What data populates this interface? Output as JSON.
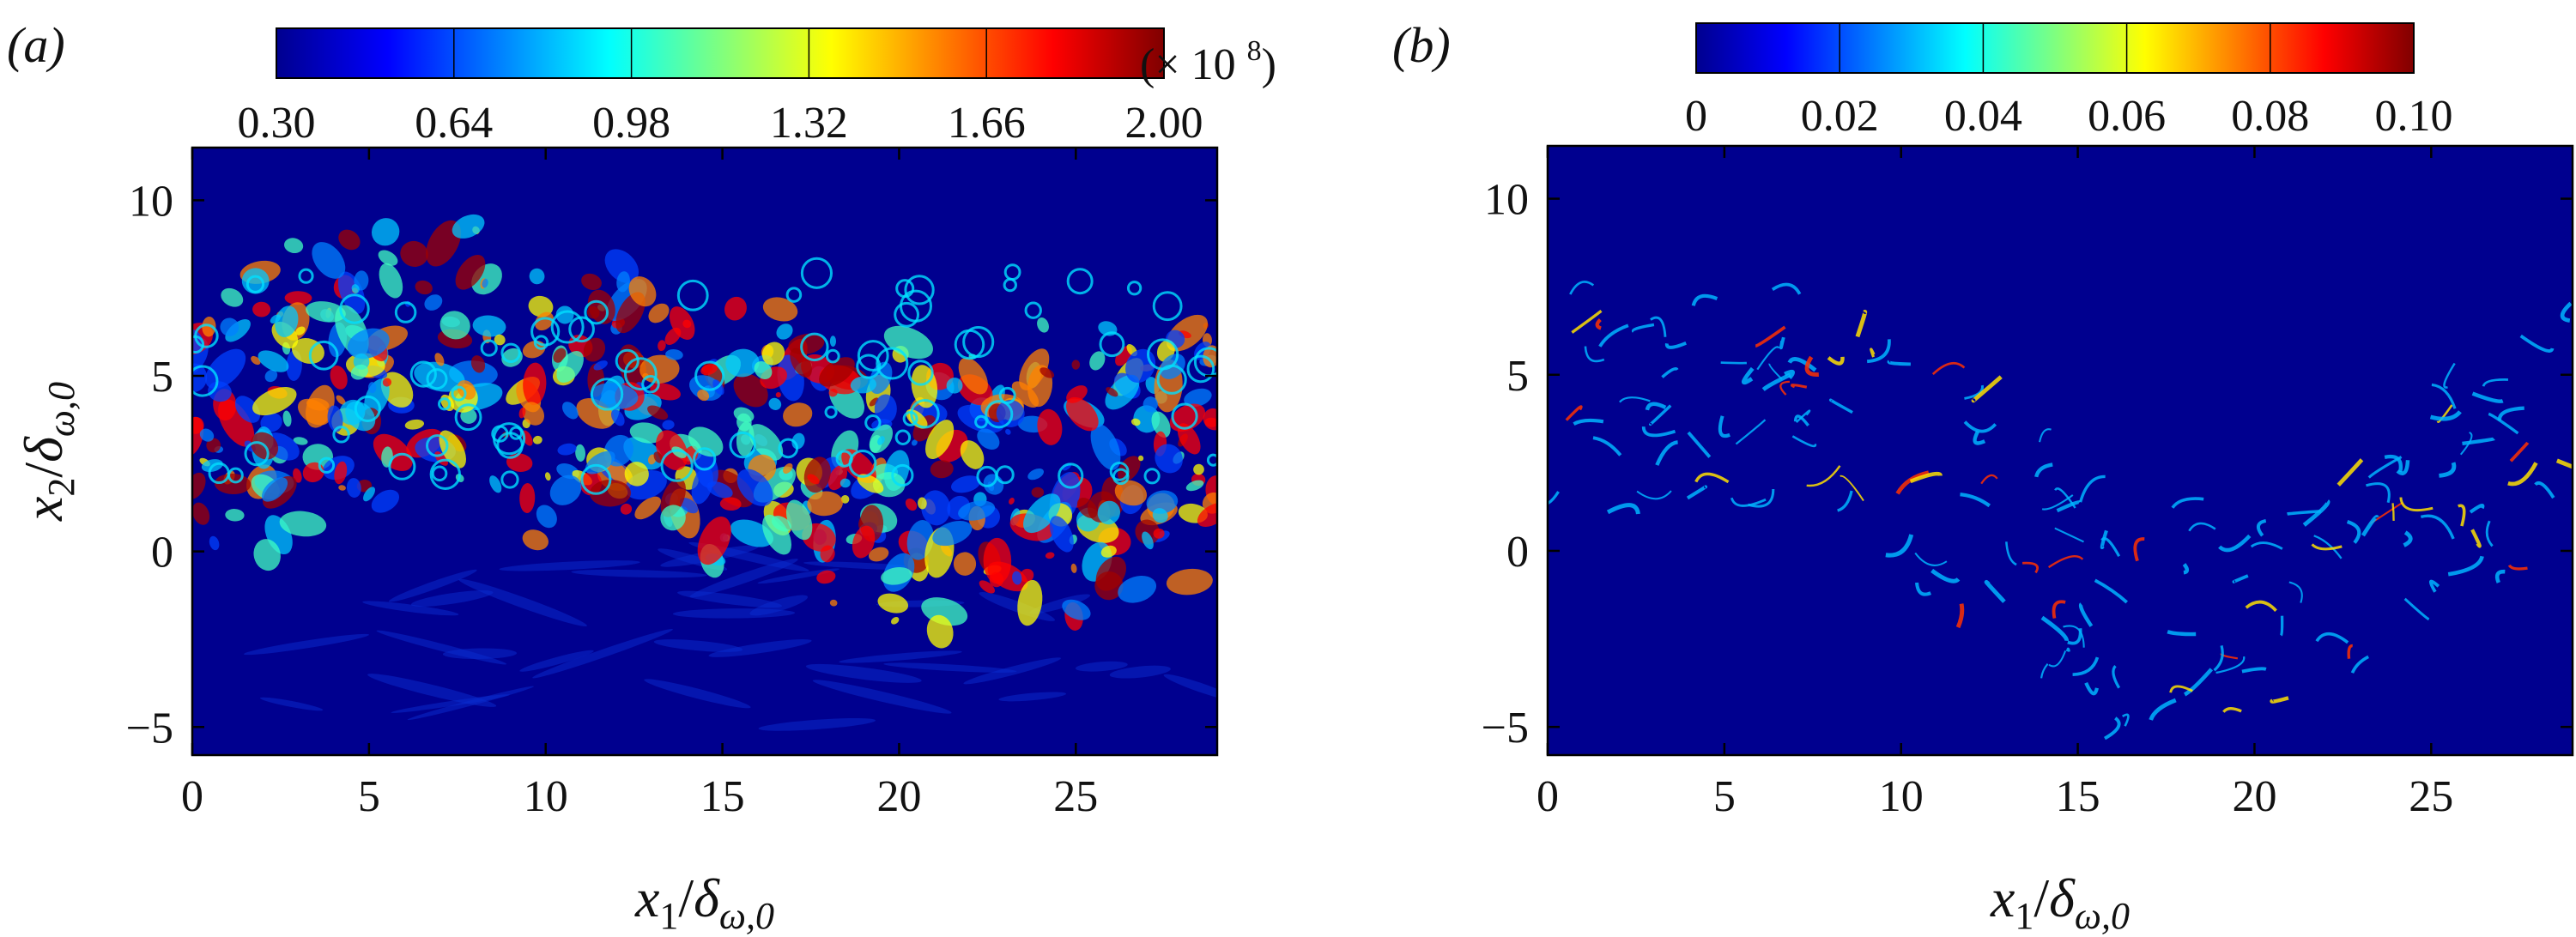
{
  "chart_data": [
    {
      "type": "heatmap",
      "panel_label": "(a)",
      "xlabel": {
        "var": "x",
        "sub": "1",
        "den": "δ",
        "den_sub": "ω,0"
      },
      "ylabel": {
        "var": "x",
        "sub": "2",
        "den": "δ",
        "den_sub": "ω,0"
      },
      "xlim": [
        0,
        29
      ],
      "ylim": [
        -5.8,
        11.5
      ],
      "x_ticks": [
        0,
        5,
        10,
        15,
        20,
        25
      ],
      "x_tick_labels": [
        "0",
        "5",
        "10",
        "15",
        "20",
        "25"
      ],
      "y_ticks": [
        -5,
        0,
        5,
        10
      ],
      "y_tick_labels": [
        "−5",
        "0",
        "5",
        "10"
      ],
      "colorbar": {
        "colormap": "jet",
        "range": [
          0.3,
          2.0
        ],
        "tick_labels": [
          "0.30",
          "0.64",
          "0.98",
          "1.32",
          "1.66",
          "2.00"
        ],
        "multiplier_prefix": "(× 10",
        "multiplier_exp": "8",
        "multiplier_suffix": ")"
      },
      "background_color": "#00008f",
      "grid": false
    },
    {
      "type": "heatmap",
      "panel_label": "(b)",
      "xlabel": {
        "var": "x",
        "sub": "1",
        "den": "δ",
        "den_sub": "ω,0"
      },
      "ylabel": null,
      "xlim": [
        0,
        29
      ],
      "ylim": [
        -5.8,
        11.5
      ],
      "x_ticks": [
        0,
        5,
        10,
        15,
        20,
        25
      ],
      "x_tick_labels": [
        "0",
        "5",
        "10",
        "15",
        "20",
        "25"
      ],
      "y_ticks": [
        -5,
        0,
        5,
        10
      ],
      "y_tick_labels": [
        "−5",
        "0",
        "5",
        "10"
      ],
      "colorbar": {
        "colormap": "jet",
        "range": [
          0,
          0.1
        ],
        "tick_labels": [
          "0",
          "0.02",
          "0.04",
          "0.06",
          "0.08",
          "0.10"
        ]
      },
      "background_color": "#00008f",
      "grid": false
    }
  ]
}
